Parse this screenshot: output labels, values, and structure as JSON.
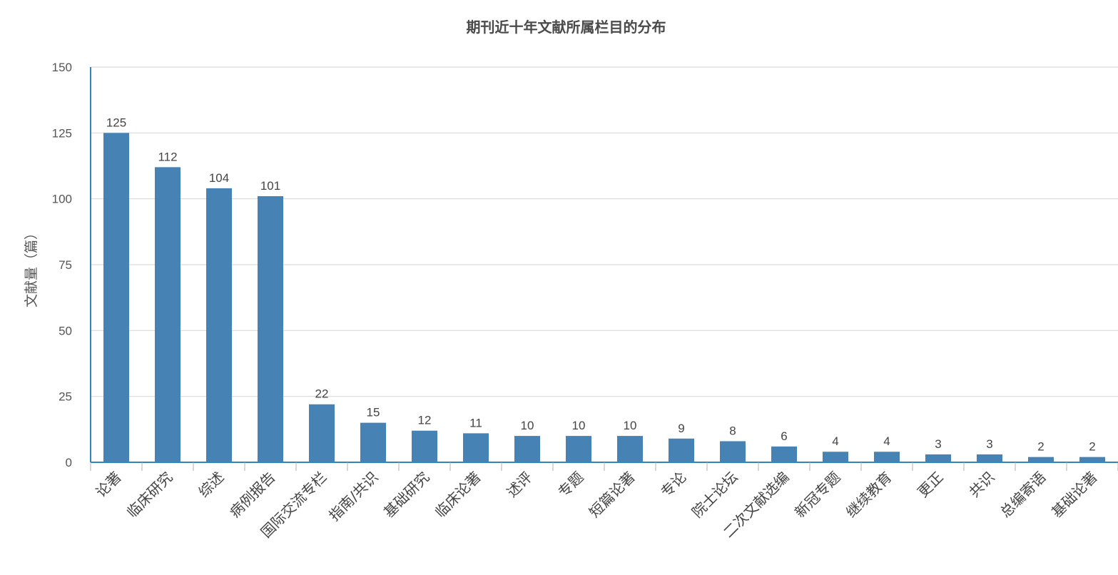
{
  "chart_data": {
    "type": "bar",
    "title": "期刊近十年文献所属栏目的分布",
    "xlabel": "",
    "ylabel": "文献量（篇）",
    "ylim": [
      0,
      150
    ],
    "yticks": [
      0,
      25,
      50,
      75,
      100,
      125,
      150
    ],
    "grid": true,
    "legend": "none",
    "bar_color": "#4682b4",
    "axis_color": "#2e86c1",
    "categories": [
      "论著",
      "临床研究",
      "综述",
      "病例报告",
      "国际交流专栏",
      "指南/共识",
      "基础研究",
      "临床论著",
      "述评",
      "专题",
      "短篇论著",
      "专论",
      "院士论坛",
      "二次文献选编",
      "新冠专题",
      "继续教育",
      "更正",
      "共识",
      "总编寄语",
      "基础论著"
    ],
    "values": [
      125,
      112,
      104,
      101,
      22,
      15,
      12,
      11,
      10,
      10,
      10,
      9,
      8,
      6,
      4,
      4,
      3,
      3,
      2,
      2
    ]
  }
}
